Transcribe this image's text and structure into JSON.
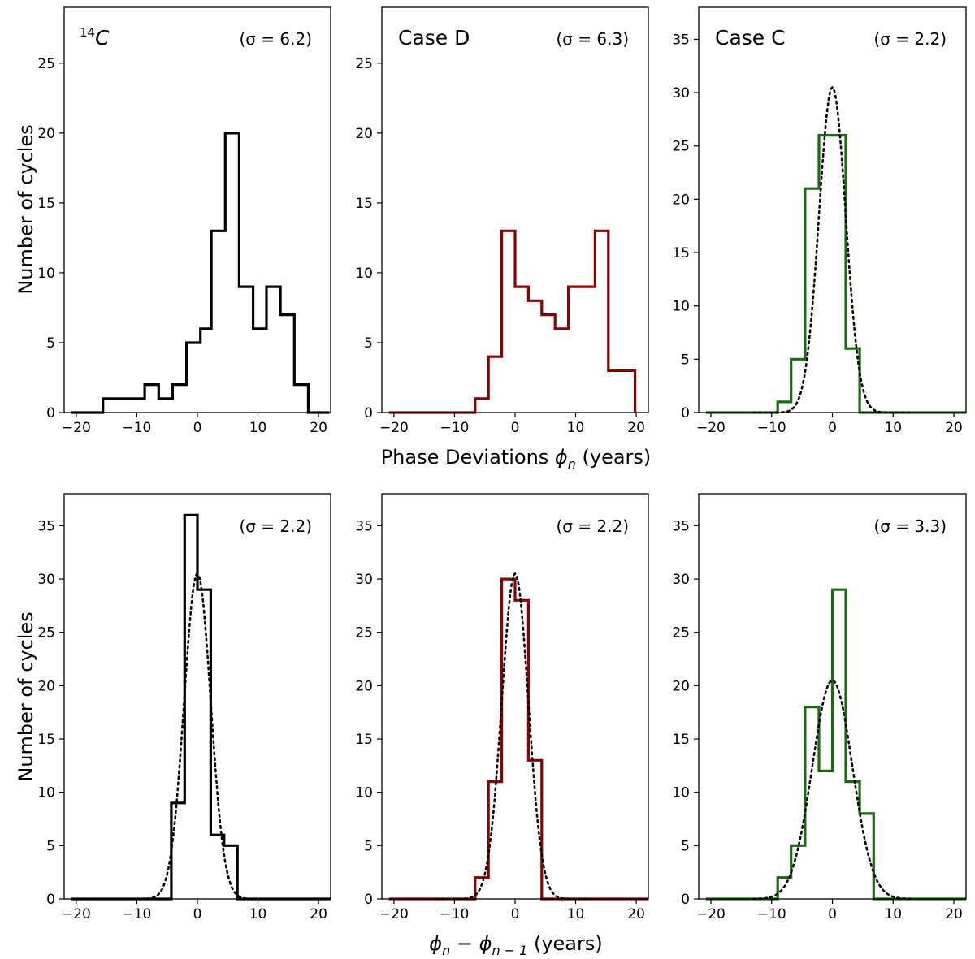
{
  "figure": {
    "xlabel_top_row": {
      "prefix": "Phase Deviations ",
      "symbol": "ϕ",
      "sub": "n",
      "suffix": " (years)"
    },
    "xlabel_bottom_row": {
      "symbol1": "ϕ",
      "sub1": "n",
      "mid": " − ",
      "symbol2": "ϕ",
      "sub2": "n − 1",
      "suffix": " (years)"
    },
    "ylabel": "Number of cycles"
  },
  "chart_data": [
    {
      "type": "histogram",
      "id": "top-14C",
      "title_sup": "14",
      "title": "C",
      "sigma_label": "(σ = 6.2)",
      "color": "#000000",
      "xlim": [
        -22,
        22
      ],
      "ylim": [
        0,
        29
      ],
      "xticks": [
        -20,
        -10,
        0,
        10,
        20
      ],
      "yticks": [
        0,
        5,
        10,
        15,
        20,
        25
      ],
      "xtick_labels": [
        "−20",
        "−10",
        "0",
        "10",
        "20"
      ],
      "ytick_labels": [
        "0",
        "5",
        "10",
        "15",
        "20",
        "25"
      ],
      "bin_edges": [
        -20.8,
        -15.6,
        -13.3,
        -11.0,
        -8.7,
        -6.4,
        -4.1,
        -1.8,
        0.5,
        2.3,
        4.6,
        6.9,
        9.2,
        11.4,
        13.7,
        16.0,
        18.3,
        20.5
      ],
      "counts": [
        0,
        1,
        1,
        1,
        2,
        1,
        2,
        5,
        6,
        13,
        20,
        9,
        6,
        9,
        7,
        2,
        0
      ],
      "line_start": -20.8,
      "line_end": 21.8,
      "gaussian": null
    },
    {
      "type": "histogram",
      "id": "top-caseD",
      "title": "Case D",
      "sigma_label": "(σ = 6.3)",
      "color": "#8b0000",
      "xlim": [
        -22,
        22
      ],
      "ylim": [
        0,
        29
      ],
      "xticks": [
        -20,
        -10,
        0,
        10,
        20
      ],
      "yticks": [
        0,
        5,
        10,
        15,
        20,
        25
      ],
      "xtick_labels": [
        "−20",
        "−10",
        "0",
        "10",
        "20"
      ],
      "ytick_labels": [
        "0",
        "5",
        "10",
        "15",
        "20",
        "25"
      ],
      "bin_edges": [
        -20.8,
        -6.6,
        -4.4,
        -2.2,
        0.0,
        2.2,
        4.4,
        6.6,
        8.8,
        11.0,
        13.2,
        15.4,
        17.6,
        19.8
      ],
      "counts": [
        0,
        1,
        4,
        13,
        9,
        8,
        7,
        6,
        9,
        9,
        13,
        3,
        3
      ],
      "line_start": -20.8,
      "line_end": 19.8,
      "gaussian": null
    },
    {
      "type": "histogram",
      "id": "top-caseC",
      "title": "Case C",
      "sigma_label": "(σ = 2.2)",
      "color": "#1a6b0f",
      "xlim": [
        -22,
        22
      ],
      "ylim": [
        0,
        38
      ],
      "xticks": [
        -20,
        -10,
        0,
        10,
        20
      ],
      "yticks": [
        0,
        5,
        10,
        15,
        20,
        25,
        30,
        35
      ],
      "xtick_labels": [
        "−20",
        "−10",
        "0",
        "10",
        "20"
      ],
      "ytick_labels": [
        "0",
        "5",
        "10",
        "15",
        "20",
        "25",
        "30",
        "35"
      ],
      "bin_edges": [
        -20.8,
        -9.0,
        -6.8,
        -4.5,
        -2.2,
        0.0,
        2.2,
        4.5
      ],
      "counts": [
        0,
        1,
        5,
        21,
        26,
        26,
        6
      ],
      "line_start": -20.8,
      "line_end": 22.0,
      "gaussian": {
        "mu": 0.0,
        "sigma": 2.2,
        "peak": 30.5
      }
    },
    {
      "type": "histogram",
      "id": "bottom-14C",
      "title": "",
      "sigma_label": "(σ = 2.2)",
      "color": "#000000",
      "xlim": [
        -22,
        22
      ],
      "ylim": [
        0,
        38
      ],
      "xticks": [
        -20,
        -10,
        0,
        10,
        20
      ],
      "yticks": [
        0,
        5,
        10,
        15,
        20,
        25,
        30,
        35
      ],
      "xtick_labels": [
        "−20",
        "−10",
        "0",
        "10",
        "20"
      ],
      "ytick_labels": [
        "0",
        "5",
        "10",
        "15",
        "20",
        "25",
        "30",
        "35"
      ],
      "bin_edges": [
        -20.8,
        -4.3,
        -2.1,
        0.0,
        2.2,
        4.4,
        6.6
      ],
      "counts": [
        0,
        9,
        36,
        29,
        6,
        5
      ],
      "line_start": -20.8,
      "line_end": 22.0,
      "gaussian": {
        "mu": 0.0,
        "sigma": 2.2,
        "peak": 30.5
      }
    },
    {
      "type": "histogram",
      "id": "bottom-caseD",
      "title": "",
      "sigma_label": "(σ = 2.2)",
      "color": "#8b0000",
      "xlim": [
        -22,
        22
      ],
      "ylim": [
        0,
        38
      ],
      "xticks": [
        -20,
        -10,
        0,
        10,
        20
      ],
      "yticks": [
        0,
        5,
        10,
        15,
        20,
        25,
        30,
        35
      ],
      "xtick_labels": [
        "−20",
        "−10",
        "0",
        "10",
        "20"
      ],
      "ytick_labels": [
        "0",
        "5",
        "10",
        "15",
        "20",
        "25",
        "30",
        "35"
      ],
      "bin_edges": [
        -20.8,
        -6.6,
        -4.4,
        -2.2,
        0.0,
        2.2,
        4.4,
        6.6
      ],
      "counts": [
        0,
        2,
        11,
        30,
        28,
        13,
        0
      ],
      "line_start": -20.8,
      "line_end": 22.0,
      "gaussian": {
        "mu": 0.0,
        "sigma": 2.2,
        "peak": 30.5
      }
    },
    {
      "type": "histogram",
      "id": "bottom-caseC",
      "title": "",
      "sigma_label": "(σ = 3.3)",
      "color": "#1a6b0f",
      "xlim": [
        -22,
        22
      ],
      "ylim": [
        0,
        38
      ],
      "xticks": [
        -20,
        -10,
        0,
        10,
        20
      ],
      "yticks": [
        0,
        5,
        10,
        15,
        20,
        25,
        30,
        35
      ],
      "xtick_labels": [
        "−20",
        "−10",
        "0",
        "10",
        "20"
      ],
      "ytick_labels": [
        "0",
        "5",
        "10",
        "15",
        "20",
        "25",
        "30",
        "35"
      ],
      "bin_edges": [
        -20.8,
        -9.0,
        -6.8,
        -4.5,
        -2.2,
        0.0,
        2.2,
        4.5,
        6.8,
        9.0
      ],
      "counts": [
        0,
        2,
        5,
        18,
        12,
        29,
        11,
        8,
        0
      ],
      "line_start": -20.8,
      "line_end": 22.0,
      "gaussian": {
        "mu": 0.0,
        "sigma": 3.3,
        "peak": 20.5
      }
    }
  ]
}
